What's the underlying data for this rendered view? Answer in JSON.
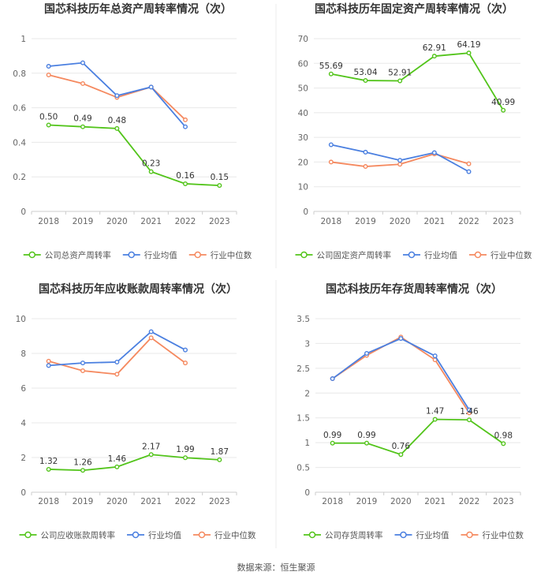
{
  "legend_labels": {
    "avg": "行业均值",
    "median": "行业中位数"
  },
  "colors": {
    "company": "#52c41a",
    "avg": "#4a7fe0",
    "median": "#f5895f",
    "grid": "#e8e8e8",
    "axis": "#cccccc"
  },
  "source": "数据来源：恒生聚源",
  "chart_data": [
    {
      "type": "line",
      "title": "国芯科技历年总资产周转率情况（次）",
      "categories": [
        "2018",
        "2019",
        "2020",
        "2021",
        "2022",
        "2023"
      ],
      "ylim": [
        0,
        1
      ],
      "yticks": [
        "0",
        "0.2",
        "0.4",
        "0.6",
        "0.8",
        "1"
      ],
      "series": [
        {
          "name": "公司总资产周转率",
          "key": "company",
          "values": [
            0.5,
            0.49,
            0.48,
            0.23,
            0.16,
            0.15
          ],
          "labels": [
            "0.50",
            "0.49",
            "0.48",
            "0.23",
            "0.16",
            "0.15"
          ]
        },
        {
          "name": "行业均值",
          "key": "avg",
          "values": [
            0.84,
            0.86,
            0.67,
            0.72,
            0.49,
            null
          ]
        },
        {
          "name": "行业中位数",
          "key": "median",
          "values": [
            0.79,
            0.74,
            0.66,
            0.72,
            0.53,
            null
          ]
        }
      ]
    },
    {
      "type": "line",
      "title": "国芯科技历年固定资产周转率情况（次）",
      "categories": [
        "2018",
        "2019",
        "2020",
        "2021",
        "2022",
        "2023"
      ],
      "ylim": [
        0,
        70
      ],
      "yticks": [
        "0",
        "10",
        "20",
        "30",
        "40",
        "50",
        "60",
        "70"
      ],
      "series": [
        {
          "name": "公司固定资产周转率",
          "key": "company",
          "values": [
            55.69,
            53.04,
            52.91,
            62.91,
            64.19,
            40.99
          ],
          "labels": [
            "55.69",
            "53.04",
            "52.91",
            "62.91",
            "64.19",
            "40.99"
          ]
        },
        {
          "name": "行业均值",
          "key": "avg",
          "values": [
            27.0,
            24.0,
            20.7,
            23.8,
            16.1,
            null
          ]
        },
        {
          "name": "行业中位数",
          "key": "median",
          "values": [
            20.0,
            18.2,
            19.1,
            23.3,
            19.3,
            null
          ]
        }
      ]
    },
    {
      "type": "line",
      "title": "国芯科技历年应收账款周转率情况（次）",
      "categories": [
        "2018",
        "2019",
        "2020",
        "2021",
        "2022",
        "2023"
      ],
      "ylim": [
        0,
        10
      ],
      "yticks": [
        "0",
        "2",
        "4",
        "6",
        "8",
        "10"
      ],
      "series": [
        {
          "name": "公司应收账款周转率",
          "key": "company",
          "values": [
            1.32,
            1.26,
            1.46,
            2.17,
            1.99,
            1.87
          ],
          "labels": [
            "1.32",
            "1.26",
            "1.46",
            "2.17",
            "1.99",
            "1.87"
          ]
        },
        {
          "name": "行业均值",
          "key": "avg",
          "values": [
            7.3,
            7.45,
            7.5,
            9.25,
            8.2,
            null
          ]
        },
        {
          "name": "行业中位数",
          "key": "median",
          "values": [
            7.55,
            7.0,
            6.8,
            8.9,
            7.45,
            null
          ]
        }
      ]
    },
    {
      "type": "line",
      "title": "国芯科技历年存货周转率情况（次）",
      "categories": [
        "2018",
        "2019",
        "2020",
        "2021",
        "2022",
        "2023"
      ],
      "ylim": [
        0,
        3.5
      ],
      "yticks": [
        "0",
        "0.5",
        "1",
        "1.5",
        "2",
        "2.5",
        "3",
        "3.5"
      ],
      "series": [
        {
          "name": "公司存货周转率",
          "key": "company",
          "values": [
            0.99,
            0.99,
            0.76,
            1.47,
            1.46,
            0.98
          ],
          "labels": [
            "0.99",
            "0.99",
            "0.76",
            "1.47",
            "1.46",
            "0.98"
          ]
        },
        {
          "name": "行业均值",
          "key": "avg",
          "values": [
            2.29,
            2.8,
            3.1,
            2.75,
            1.66,
            null
          ]
        },
        {
          "name": "行业中位数",
          "key": "median",
          "values": [
            2.29,
            2.76,
            3.13,
            2.67,
            1.6,
            null
          ]
        }
      ]
    }
  ]
}
